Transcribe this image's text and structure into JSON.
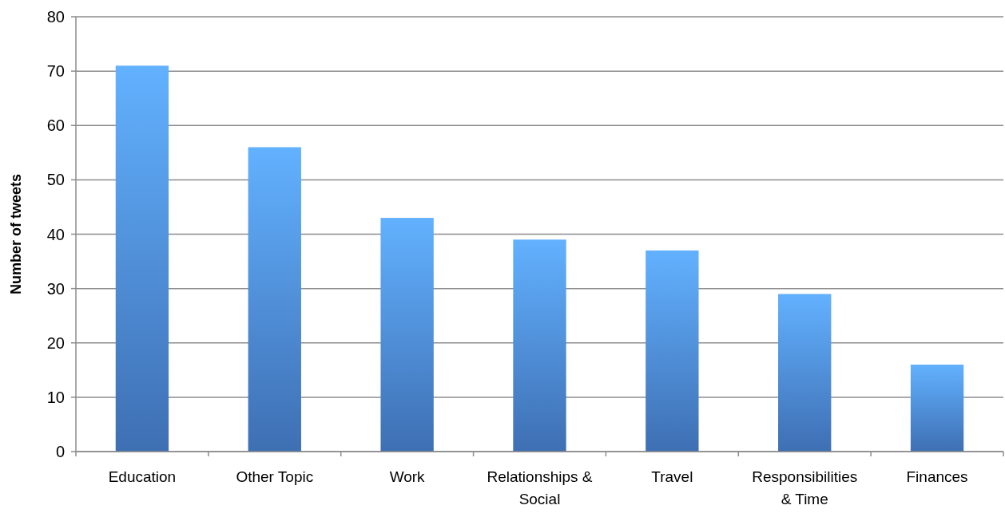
{
  "chart_data": {
    "type": "bar",
    "ylabel": "Number of tweets",
    "categories": [
      "Education",
      "Other Topic",
      "Work",
      "Relationships & Social",
      "Travel",
      "Responsibilities & Time",
      "Finances"
    ],
    "values": [
      71,
      56,
      43,
      39,
      37,
      29,
      16
    ],
    "color": "#4f8fe6",
    "ylim": [
      0,
      80
    ],
    "yticks": [
      0,
      10,
      20,
      30,
      40,
      50,
      60,
      70,
      80
    ],
    "grid": "y"
  }
}
